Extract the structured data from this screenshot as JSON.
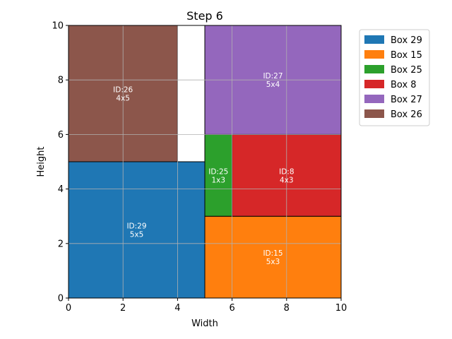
{
  "chart_data": {
    "type": "rectangle-packing",
    "title": "Step 6",
    "xlabel": "Width",
    "ylabel": "Height",
    "xlim": [
      0,
      10
    ],
    "ylim": [
      0,
      10
    ],
    "xticks": [
      0,
      2,
      4,
      6,
      8,
      10
    ],
    "yticks": [
      0,
      2,
      4,
      6,
      8,
      10
    ],
    "grid": true,
    "legend_position": "outside-top-right",
    "boxes": [
      {
        "id": 29,
        "legend": "Box 29",
        "label_id": "ID:29",
        "label_size": "5x5",
        "x": 0,
        "y": 0,
        "w": 5,
        "h": 5,
        "color": "#1f77b4"
      },
      {
        "id": 15,
        "legend": "Box 15",
        "label_id": "ID:15",
        "label_size": "5x3",
        "x": 5,
        "y": 0,
        "w": 5,
        "h": 3,
        "color": "#ff7f0e"
      },
      {
        "id": 25,
        "legend": "Box 25",
        "label_id": "ID:25",
        "label_size": "1x3",
        "x": 5,
        "y": 3,
        "w": 1,
        "h": 3,
        "color": "#2ca02c"
      },
      {
        "id": 8,
        "legend": "Box 8",
        "label_id": "ID:8",
        "label_size": "4x3",
        "x": 6,
        "y": 3,
        "w": 4,
        "h": 3,
        "color": "#d62728"
      },
      {
        "id": 27,
        "legend": "Box 27",
        "label_id": "ID:27",
        "label_size": "5x4",
        "x": 5,
        "y": 6,
        "w": 5,
        "h": 4,
        "color": "#9467bd"
      },
      {
        "id": 26,
        "legend": "Box 26",
        "label_id": "ID:26",
        "label_size": "4x5",
        "x": 0,
        "y": 5,
        "w": 4,
        "h": 5,
        "color": "#8c564b"
      }
    ]
  }
}
